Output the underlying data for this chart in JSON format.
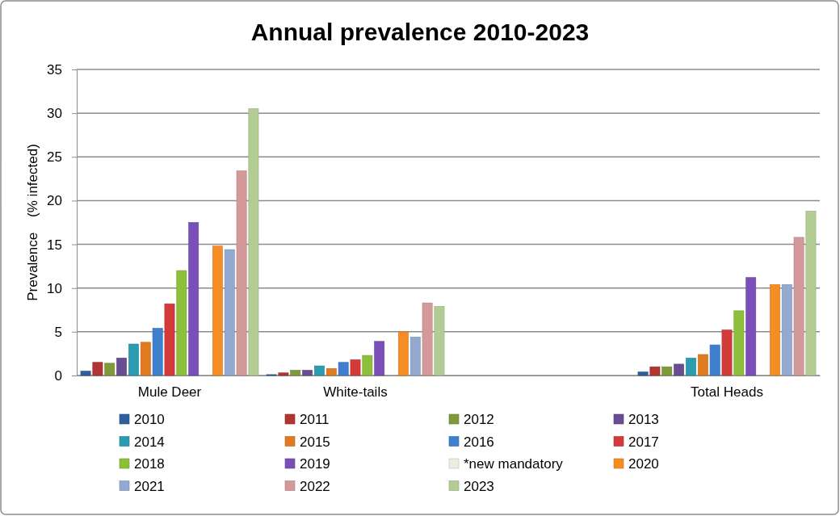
{
  "chart_data": {
    "type": "bar",
    "title": "Annual prevalence 2010-2023",
    "ylabel": "Prevalence    (% infected)",
    "categories": [
      "Mule Deer",
      "White-tails",
      null,
      "Total Heads"
    ],
    "ylim": [
      0,
      35
    ],
    "yticks": [
      0,
      5,
      10,
      15,
      20,
      25,
      30,
      35
    ],
    "grid": "y",
    "legend": "bottom",
    "series": [
      {
        "name": "2010",
        "color": "#2e5f9e",
        "values": [
          0.5,
          0.1,
          null,
          0.4
        ]
      },
      {
        "name": "2011",
        "color": "#b03533",
        "values": [
          1.5,
          0.3,
          null,
          1.0
        ]
      },
      {
        "name": "2012",
        "color": "#7f9a3a",
        "values": [
          1.4,
          0.6,
          null,
          1.0
        ]
      },
      {
        "name": "2013",
        "color": "#6a4c93",
        "values": [
          2.0,
          0.6,
          null,
          1.3
        ]
      },
      {
        "name": "2014",
        "color": "#2a9bb0",
        "values": [
          3.6,
          1.1,
          null,
          2.0
        ]
      },
      {
        "name": "2015",
        "color": "#e07b22",
        "values": [
          3.8,
          0.8,
          null,
          2.4
        ]
      },
      {
        "name": "2016",
        "color": "#3f7fcf",
        "values": [
          5.4,
          1.5,
          null,
          3.5
        ]
      },
      {
        "name": "2017",
        "color": "#d33b3b",
        "values": [
          8.2,
          1.8,
          null,
          5.2
        ]
      },
      {
        "name": "2018",
        "color": "#8dbf3b",
        "values": [
          12.0,
          2.3,
          null,
          7.4
        ]
      },
      {
        "name": "2019",
        "color": "#7b4fb8",
        "values": [
          17.5,
          3.9,
          null,
          11.2
        ]
      },
      {
        "name": "*new mandatory",
        "color": "#eeece1",
        "values": [
          null,
          null,
          null,
          null
        ]
      },
      {
        "name": "2020",
        "color": "#f58d24",
        "values": [
          14.8,
          5.0,
          null,
          10.4
        ]
      },
      {
        "name": "2021",
        "color": "#93a9d0",
        "values": [
          14.4,
          4.4,
          null,
          10.4
        ]
      },
      {
        "name": "2022",
        "color": "#d49a9a",
        "values": [
          23.4,
          8.3,
          null,
          15.8
        ]
      },
      {
        "name": "2023",
        "color": "#b3cc94",
        "values": [
          30.5,
          7.9,
          null,
          18.8
        ]
      }
    ]
  }
}
